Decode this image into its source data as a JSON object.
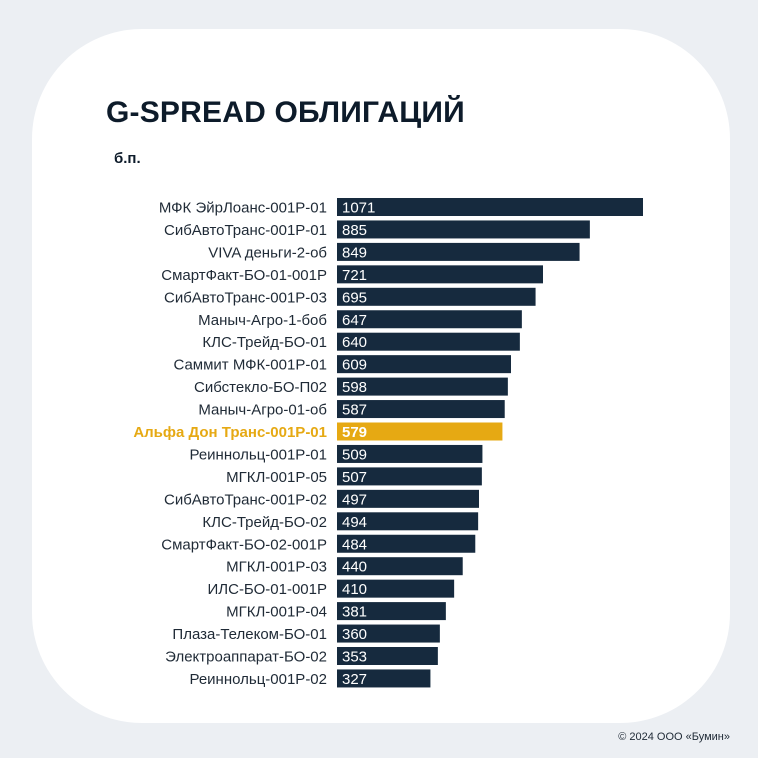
{
  "title": "G-SPREAD ОБЛИГАЦИЙ",
  "unit_label": "б.п.",
  "footer": "© 2024 ООО «Бумин»",
  "colors": {
    "bar": "#162a3e",
    "highlight": "#e6a913",
    "label": "#1f2a36",
    "bar_text": "#ffffff"
  },
  "chart_data": {
    "type": "bar",
    "orientation": "horizontal",
    "title": "G-SPREAD ОБЛИГАЦИЙ",
    "xlabel": "б.п.",
    "ylabel": "",
    "highlight": "Альфа Дон Транс-001Р-01",
    "categories": [
      "МФК ЭйрЛоанс-001Р-01",
      "СибАвтоТранс-001Р-01",
      "VIVA деньги-2-об",
      "СмартФакт-БО-01-001Р",
      "СибАвтоТранс-001Р-03",
      "Маныч-Агро-1-боб",
      "КЛС-Трейд-БО-01",
      "Саммит МФК-001Р-01",
      "Сибстекло-БО-П02",
      "Маныч-Агро-01-об",
      "Альфа Дон Транс-001Р-01",
      "Реиннольц-001Р-01",
      "МГКЛ-001Р-05",
      "СибАвтоТранс-001Р-02",
      "КЛС-Трейд-БО-02",
      "СмартФакт-БО-02-001Р",
      "МГКЛ-001Р-03",
      "ИЛС-БО-01-001Р",
      "МГКЛ-001Р-04",
      "Плаза-Телеком-БО-01",
      "Электроаппарат-БО-02",
      "Реиннольц-001Р-02"
    ],
    "values": [
      1071,
      885,
      849,
      721,
      695,
      647,
      640,
      609,
      598,
      587,
      579,
      509,
      507,
      497,
      494,
      484,
      440,
      410,
      381,
      360,
      353,
      327
    ],
    "xlim": [
      0,
      1071
    ]
  }
}
